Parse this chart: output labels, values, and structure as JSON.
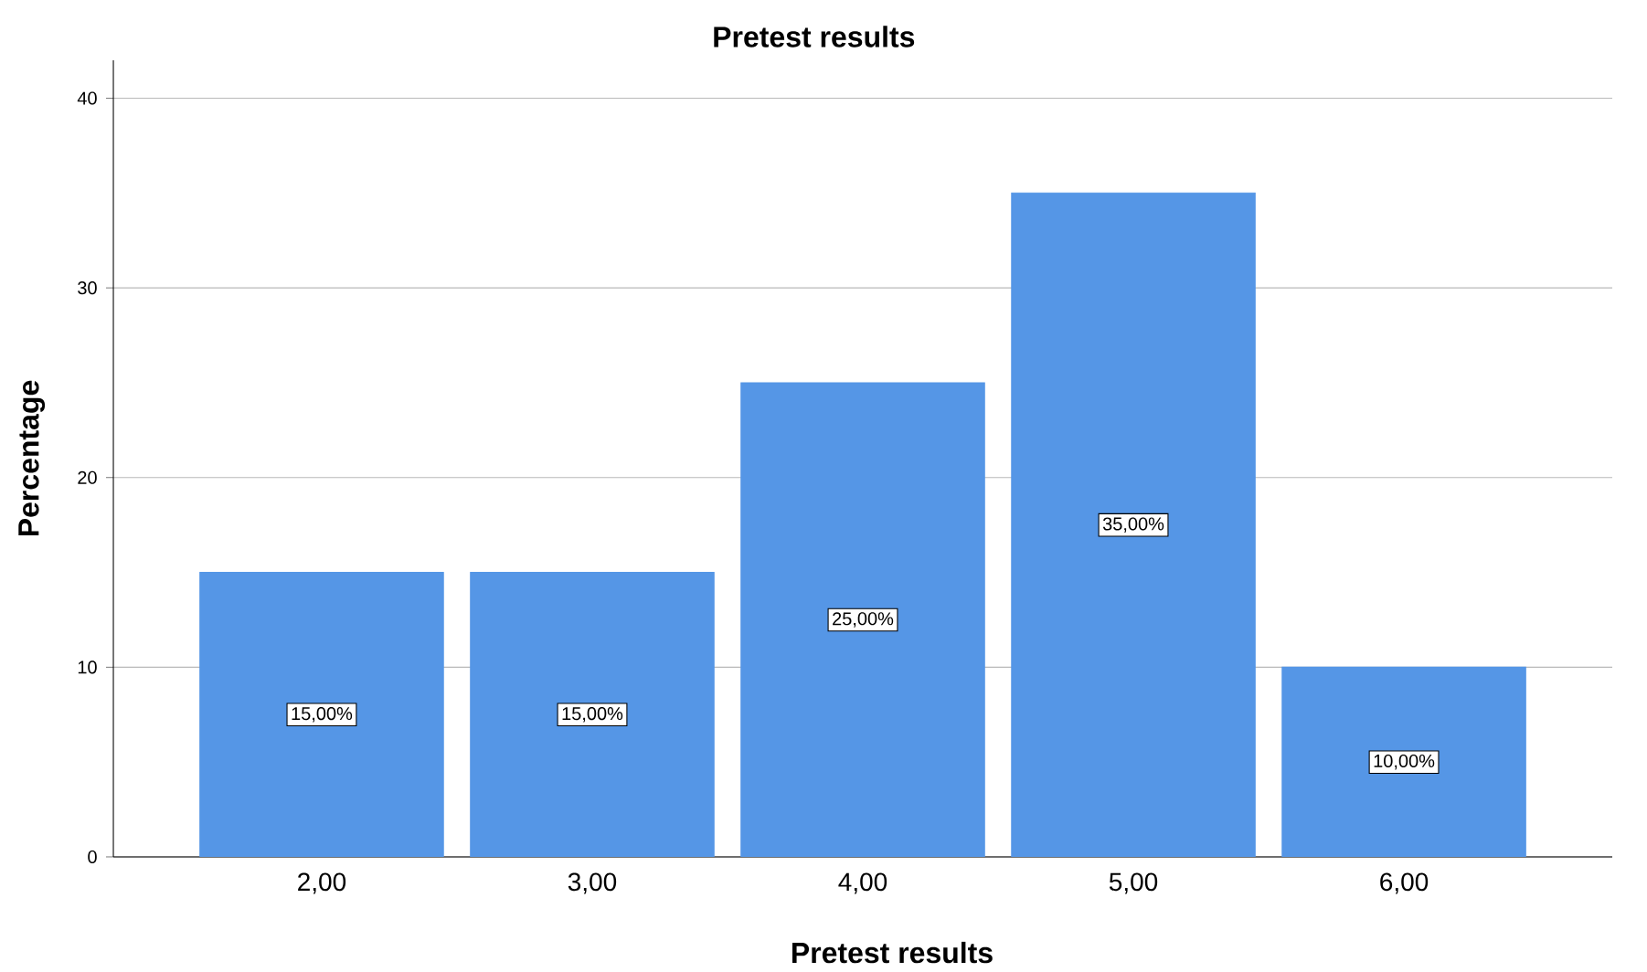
{
  "chart_data": {
    "type": "bar",
    "title": "Pretest results",
    "xlabel": "Pretest results",
    "ylabel": "Percentage",
    "categories": [
      "2,00",
      "3,00",
      "4,00",
      "5,00",
      "6,00"
    ],
    "values": [
      15,
      15,
      25,
      35,
      10
    ],
    "value_labels": [
      "15,00%",
      "15,00%",
      "25,00%",
      "35,00%",
      "10,00%"
    ],
    "color": "#5596e6",
    "ylim": [
      0,
      42
    ],
    "yticks": [
      0,
      10,
      20,
      30,
      40
    ],
    "grid": "y"
  }
}
